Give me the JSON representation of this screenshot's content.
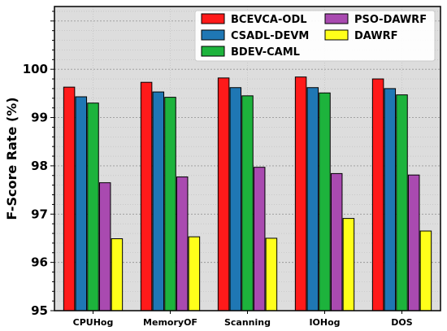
{
  "chart_data": {
    "type": "bar",
    "title": "",
    "xlabel": "",
    "ylabel": "F-Score Rate (%)",
    "ylim": [
      95,
      101.3
    ],
    "yticks": [
      95,
      96,
      97,
      98,
      99,
      100
    ],
    "grid": true,
    "legend_position": "top-right",
    "categories": [
      "CPUHog",
      "MemoryOF",
      "Scanning",
      "IOHog",
      "DOS"
    ],
    "series": [
      {
        "name": "BCEVCA-ODL",
        "color": "#ff1a1a",
        "values": [
          99.63,
          99.73,
          99.82,
          99.84,
          99.8
        ]
      },
      {
        "name": "CSADL-DEVM",
        "color": "#1f77b4",
        "values": [
          99.43,
          99.53,
          99.62,
          99.62,
          99.6
        ]
      },
      {
        "name": "BDEV-CAML",
        "color": "#1db33c",
        "values": [
          99.3,
          99.42,
          99.45,
          99.51,
          99.47
        ]
      },
      {
        "name": "PSO-DAWRF",
        "color": "#a94ab0",
        "values": [
          97.65,
          97.77,
          97.97,
          97.84,
          97.81
        ]
      },
      {
        "name": "DAWRF",
        "color": "#ffff1a",
        "values": [
          96.49,
          96.53,
          96.5,
          96.91,
          96.65
        ]
      }
    ]
  }
}
